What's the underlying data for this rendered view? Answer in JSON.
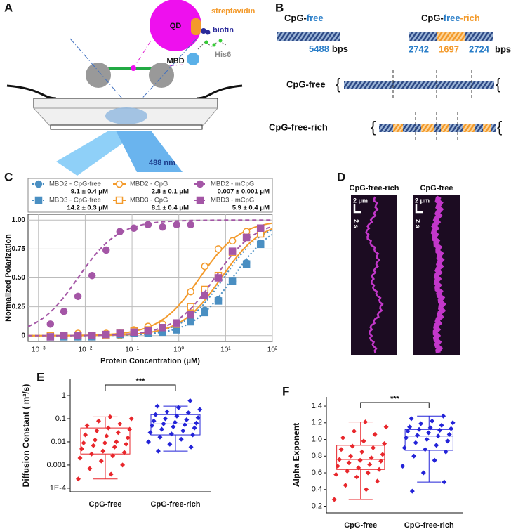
{
  "panel_labels": [
    "A",
    "B",
    "C",
    "D",
    "E",
    "F"
  ],
  "schematic_a": {
    "qd": "QD",
    "streptavidin": "streptavidin",
    "biotin": "biotin",
    "his6": "His6",
    "mbd": "MBD",
    "laser": "488 nm"
  },
  "schematic_b": {
    "free_title": [
      "CpG-",
      "free"
    ],
    "rich_title": [
      "CpG-",
      "free",
      "-rich"
    ],
    "free_lengths": [
      "5488"
    ],
    "rich_lengths": [
      "2742",
      "1697",
      "2724"
    ],
    "unit": "bps",
    "row_labels": [
      "CpG-free",
      "CpG-free-rich"
    ]
  },
  "kymographs_d": {
    "titles": [
      "CpG-free-rich",
      "CpG-free"
    ],
    "scale_distance": "2 μm",
    "scale_time": "2 s"
  },
  "chart_data": [
    {
      "type": "line",
      "xlabel": "Protein Concentration (μM)",
      "ylabel": "Normalized Polarization",
      "log_x": true,
      "grid": true,
      "xlim": [
        0.0006,
        100
      ],
      "xticks": [
        {
          "value": 0.001,
          "label": "10⁻³"
        },
        {
          "value": 0.01,
          "label": "10⁻²"
        },
        {
          "value": 0.1,
          "label": "10⁻¹"
        },
        {
          "value": 1,
          "label": "10⁰"
        },
        {
          "value": 10,
          "label": "10¹"
        },
        {
          "value": 100,
          "label": "10²"
        }
      ],
      "ylim": [
        -0.05,
        1.05
      ],
      "yticks": [
        0,
        0.25,
        {
          "value": 0.5,
          "label": "0.50"
        },
        0.75,
        {
          "value": 1,
          "label": "1.00"
        }
      ],
      "x": [
        0.0018,
        0.0035,
        0.007,
        0.014,
        0.028,
        0.055,
        0.11,
        0.22,
        0.45,
        0.9,
        1.8,
        3.6,
        7,
        14,
        28,
        56
      ],
      "series": [
        {
          "name": "MBD2 - CpG-free",
          "color": "#4a8fc2",
          "marker": "circle",
          "filled": true,
          "line": "dotted",
          "kd": 9.1,
          "kd_label": "9.1 ± 0.4 μM",
          "values": [
            0,
            0,
            -0.01,
            0,
            0.01,
            0.02,
            0.02,
            0.02,
            0.04,
            0.06,
            0.13,
            0.22,
            0.31,
            0.47,
            0.63,
            0.8
          ]
        },
        {
          "name": "MBD2 - CpG",
          "color": "#f39a2b",
          "marker": "circle",
          "filled": false,
          "line": "solid",
          "kd": 2.8,
          "kd_label": "2.8 ± 0.1 μM",
          "values": [
            0,
            0,
            0.02,
            -0.01,
            0.02,
            0,
            0.05,
            0.08,
            0.1,
            0.1,
            0.38,
            0.6,
            0.75,
            0.82,
            0.9,
            0.93
          ]
        },
        {
          "name": "MBD2 - mCpG",
          "color": "#a456a6",
          "marker": "circle",
          "filled": true,
          "line": "dashed",
          "kd": 0.007,
          "kd_label": "0.007 ± 0.001 μM",
          "values": [
            0.1,
            0.21,
            0.34,
            0.52,
            0.74,
            0.9,
            0.93,
            0.96,
            0.94,
            0.96,
            0.96,
            null,
            null,
            null,
            null,
            null
          ]
        },
        {
          "name": "MBD3 - CpG-free",
          "color": "#4a8fc2",
          "marker": "square",
          "filled": true,
          "line": "dotted",
          "kd": 14.2,
          "kd_label": "14.2 ± 0.3 μM",
          "values": [
            -0.01,
            -0.01,
            -0.01,
            -0.01,
            0,
            0.01,
            0.02,
            0.02,
            0.03,
            0.05,
            0.12,
            0.2,
            0.3,
            0.47,
            0.62,
            0.79
          ]
        },
        {
          "name": "MBD3 - CpG",
          "color": "#f39a2b",
          "marker": "square",
          "filled": false,
          "line": "solid",
          "kd": 8.1,
          "kd_label": "8.1 ± 0.4 μM",
          "values": [
            0,
            0,
            0,
            0,
            0,
            0.02,
            0.04,
            0.05,
            0.07,
            0.1,
            0.25,
            0.4,
            0.52,
            0.72,
            0.85,
            0.88
          ]
        },
        {
          "name": "MBD3 - mCpG",
          "color": "#a456a6",
          "marker": "square",
          "filled": true,
          "line": "dashed",
          "kd": 5.9,
          "kd_label": "5.9 ± 0.4 μM",
          "values": [
            -0.01,
            0,
            0,
            0,
            0.01,
            0.02,
            0.03,
            0.04,
            0.07,
            0.11,
            0.18,
            0.35,
            0.5,
            0.73,
            0.85,
            0.93
          ]
        }
      ]
    },
    {
      "type": "box",
      "ylabel": "Diffusion Constant (  m²/s)",
      "log_y": true,
      "ylim": [
        7e-05,
        5
      ],
      "yticks": [
        {
          "value": 0.0001,
          "label": "1E-4"
        },
        0.001,
        0.01,
        0.1,
        1
      ],
      "categories": [
        "CpG-free",
        "CpG-free-rich"
      ],
      "annotation": "***",
      "boxes": [
        {
          "color": "#e8262b",
          "low": 0.00025,
          "q1": 0.003,
          "median": 0.009,
          "q3": 0.04,
          "high": 0.12,
          "points": [
            0.00025,
            0.0004,
            0.0007,
            0.001,
            0.0015,
            0.002,
            0.0025,
            0.003,
            0.0035,
            0.004,
            0.005,
            0.006,
            0.007,
            0.008,
            0.009,
            0.009,
            0.01,
            0.012,
            0.015,
            0.018,
            0.02,
            0.025,
            0.03,
            0.035,
            0.04,
            0.05,
            0.06,
            0.08,
            0.1,
            0.12
          ]
        },
        {
          "color": "#2323d8",
          "low": 0.004,
          "q1": 0.02,
          "median": 0.06,
          "q3": 0.15,
          "high": 0.35,
          "points": [
            0.004,
            0.006,
            0.008,
            0.01,
            0.013,
            0.016,
            0.02,
            0.022,
            0.025,
            0.03,
            0.035,
            0.04,
            0.045,
            0.05,
            0.055,
            0.06,
            0.065,
            0.07,
            0.08,
            0.09,
            0.1,
            0.11,
            0.13,
            0.15,
            0.18,
            0.2,
            0.25,
            0.3,
            0.35,
            0.6
          ]
        }
      ]
    },
    {
      "type": "box",
      "ylabel": "Alpha Exponent",
      "log_y": false,
      "ylim": [
        0.12,
        1.51
      ],
      "yticks": [
        0.2,
        0.4,
        0.6,
        0.8,
        {
          "value": 1,
          "label": "1.0"
        },
        1.2,
        1.4
      ],
      "categories": [
        "CpG-free",
        "CpG-free-rich"
      ],
      "annotation": "***",
      "boxes": [
        {
          "color": "#e8262b",
          "low": 0.28,
          "q1": 0.64,
          "median": 0.76,
          "q3": 0.93,
          "high": 1.21,
          "points": [
            0.28,
            0.4,
            0.45,
            0.5,
            0.55,
            0.58,
            0.6,
            0.62,
            0.64,
            0.66,
            0.68,
            0.7,
            0.72,
            0.74,
            0.75,
            0.76,
            0.78,
            0.8,
            0.82,
            0.85,
            0.88,
            0.9,
            0.92,
            0.95,
            0.98,
            1.02,
            1.06,
            1.1,
            1.15,
            1.21
          ]
        },
        {
          "color": "#2323d8",
          "low": 0.49,
          "q1": 0.87,
          "median": 1.04,
          "q3": 1.12,
          "high": 1.28,
          "points": [
            0.38,
            0.49,
            0.6,
            0.68,
            0.75,
            0.8,
            0.85,
            0.88,
            0.9,
            0.93,
            0.96,
            0.98,
            1.0,
            1.02,
            1.04,
            1.05,
            1.06,
            1.08,
            1.1,
            1.11,
            1.12,
            1.13,
            1.14,
            1.15,
            1.17,
            1.19,
            1.2,
            1.22,
            1.25,
            1.28
          ]
        }
      ]
    }
  ]
}
